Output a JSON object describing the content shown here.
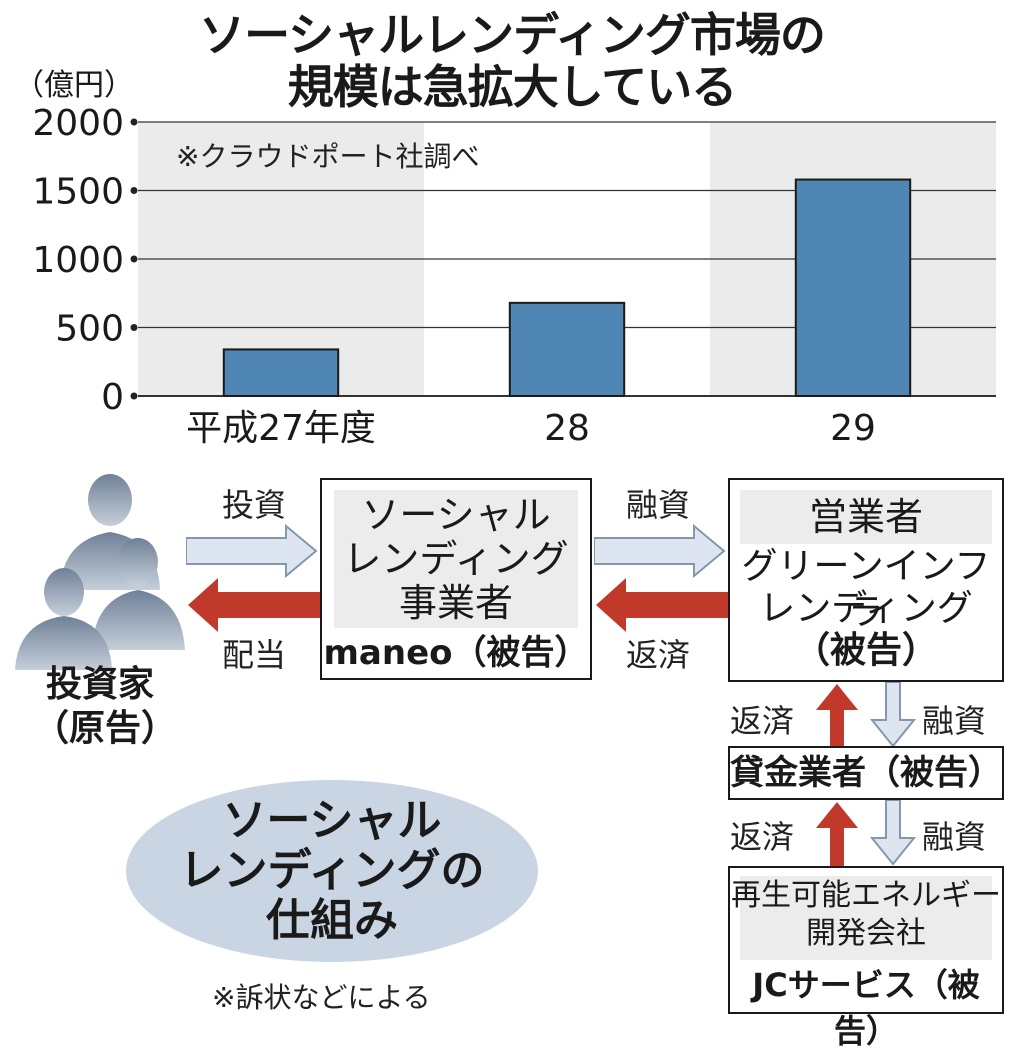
{
  "title_line1": "ソーシャルレンディング市場の",
  "title_line2": "規模は急拡大している",
  "unit": "（億円）",
  "source_note": "※クラウドポート社調べ",
  "chart_data": {
    "type": "bar",
    "title": "ソーシャルレンディング市場の規模は急拡大している",
    "ylabel": "（億円）",
    "categories": [
      "平成27年度",
      "28",
      "29"
    ],
    "values": [
      340,
      680,
      1580
    ],
    "ylim": [
      0,
      2000
    ],
    "yticks": [
      "0",
      "500",
      "1000",
      "1500",
      "2000"
    ],
    "grid": true,
    "bar_color": "#4f86b4"
  },
  "diagram": {
    "investor": "投資家",
    "investor_role": "（原告）",
    "invest_label": "投資",
    "dividend_label": "配当",
    "platform": [
      "ソーシャル",
      "レンディング",
      "事業者"
    ],
    "platform_name": "maneo（被告）",
    "finance_label": "融資",
    "repay_label": "返済",
    "operator": "営業者",
    "operator_name": [
      "グリーンインフラ",
      "レンディング",
      "（被告）"
    ],
    "repay_label_2": "返済",
    "finance_label_2": "融資",
    "lender": "貸金業者（被告）",
    "repay_label_3": "返済",
    "finance_label_3": "融資",
    "developer": [
      "再生可能エネルギー",
      "開発会社"
    ],
    "developer_name": "JCサービス（被告）",
    "mechanism": [
      "ソーシャル",
      "レンディングの",
      "仕組み"
    ],
    "footnote": "※訴状などによる",
    "arrow_colors": {
      "light": "#dde6f0",
      "red": "#c0392b"
    }
  }
}
